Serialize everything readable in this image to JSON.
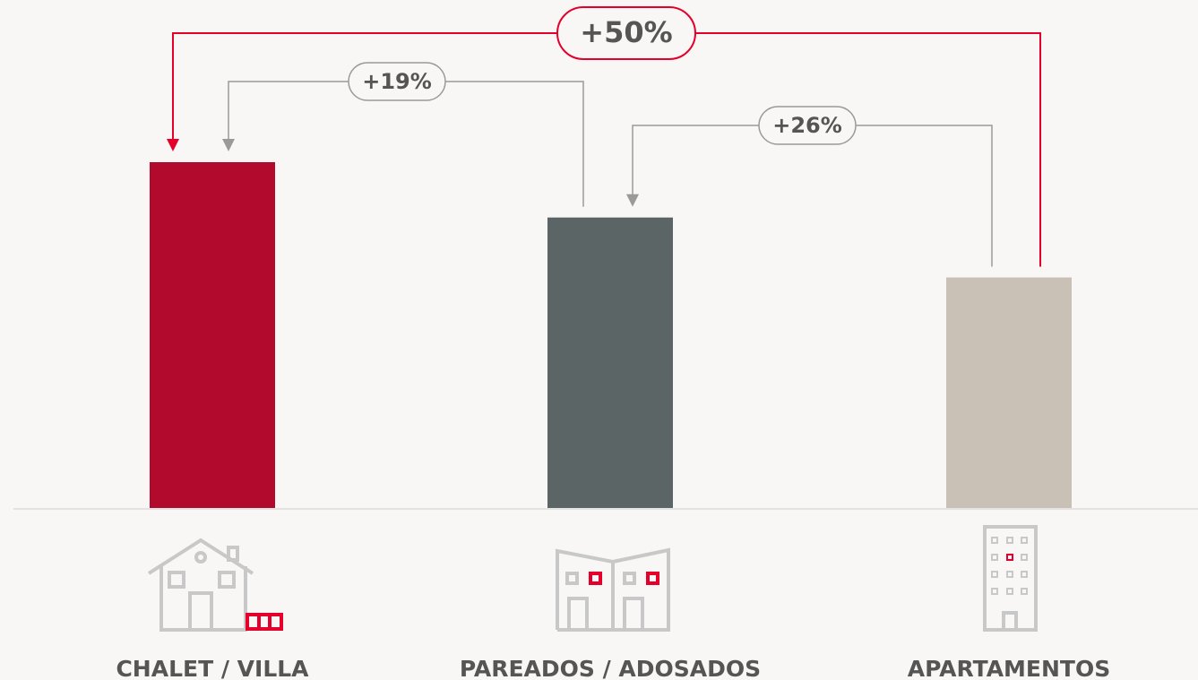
{
  "chart_data": {
    "type": "bar",
    "categories": [
      "CHALET / VILLA",
      "PAREADOS / ADOSADOS",
      "APARTAMENTOS"
    ],
    "values": [
      150,
      126,
      100
    ],
    "colors": [
      "#b20a2c",
      "#5c6566",
      "#c9c1b6"
    ],
    "ylim": [
      0,
      150
    ],
    "annotations": [
      {
        "label": "+50%",
        "from": 2,
        "to": 0,
        "color": "#e4002b"
      },
      {
        "label": "+19%",
        "from": 1,
        "to": 0,
        "color": "#9a9a9a"
      },
      {
        "label": "+26%",
        "from": 2,
        "to": 1,
        "color": "#9a9a9a"
      }
    ]
  }
}
